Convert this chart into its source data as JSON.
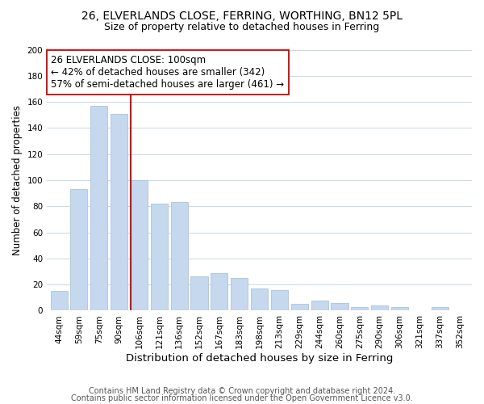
{
  "title1": "26, ELVERLANDS CLOSE, FERRING, WORTHING, BN12 5PL",
  "title2": "Size of property relative to detached houses in Ferring",
  "xlabel": "Distribution of detached houses by size in Ferring",
  "ylabel": "Number of detached properties",
  "categories": [
    "44sqm",
    "59sqm",
    "75sqm",
    "90sqm",
    "106sqm",
    "121sqm",
    "136sqm",
    "152sqm",
    "167sqm",
    "183sqm",
    "198sqm",
    "213sqm",
    "229sqm",
    "244sqm",
    "260sqm",
    "275sqm",
    "290sqm",
    "306sqm",
    "321sqm",
    "337sqm",
    "352sqm"
  ],
  "values": [
    15,
    93,
    157,
    151,
    100,
    82,
    83,
    26,
    29,
    25,
    17,
    16,
    5,
    8,
    6,
    3,
    4,
    3,
    0,
    3,
    0
  ],
  "bar_color": "#c5d8ed",
  "bar_edge_color": "#a0bcd8",
  "highlight_bar_index": 4,
  "highlight_line_color": "#cc0000",
  "annotation_box_text": "26 ELVERLANDS CLOSE: 100sqm\n← 42% of detached houses are smaller (342)\n57% of semi-detached houses are larger (461) →",
  "annotation_box_edge_color": "#cc0000",
  "annotation_fontsize": 8.5,
  "ylim": [
    0,
    200
  ],
  "yticks": [
    0,
    20,
    40,
    60,
    80,
    100,
    120,
    140,
    160,
    180,
    200
  ],
  "footer_line1": "Contains HM Land Registry data © Crown copyright and database right 2024.",
  "footer_line2": "Contains public sector information licensed under the Open Government Licence v3.0.",
  "background_color": "#ffffff",
  "grid_color": "#c8d8e8",
  "title1_fontsize": 10,
  "title2_fontsize": 9,
  "xlabel_fontsize": 9.5,
  "ylabel_fontsize": 8.5,
  "tick_fontsize": 7.5,
  "footer_fontsize": 7
}
